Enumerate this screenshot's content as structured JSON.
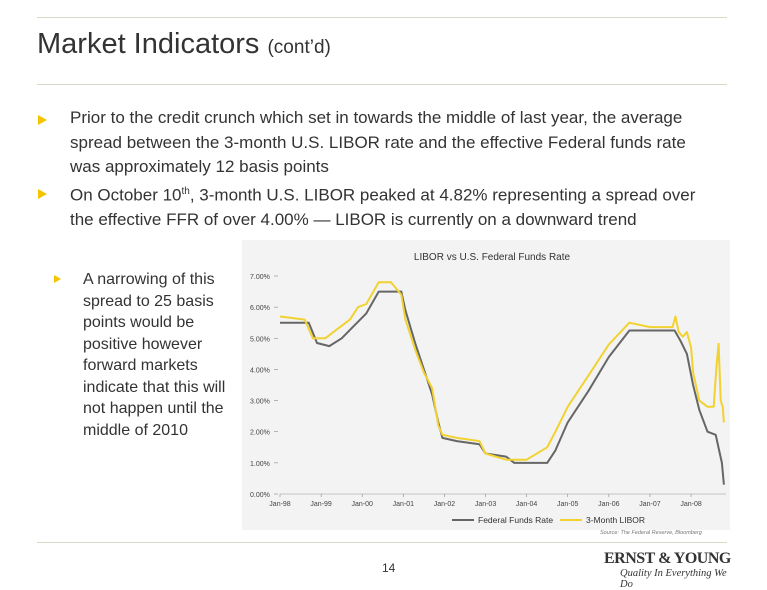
{
  "title": "Market Indicators",
  "title_suffix": "(cont’d)",
  "bullets": [
    "Prior to the credit crunch which set in towards the middle of last year, the average spread between the 3-month U.S. LIBOR rate and the effective Federal funds rate was approximately 12 basis points",
    {
      "pre": "On October 10",
      "sup": "th",
      "post": ", 3-month U.S. LIBOR peaked at 4.82% representing a spread over the effective FFR of over 4.00% — LIBOR is currently on a downward trend"
    }
  ],
  "sub_bullet": "A narrowing of this spread to 25 basis points would be positive however forward markets indicate that this will not happen until the middle of 2010",
  "page_number": "14",
  "logo": {
    "name": "ERNST & YOUNG",
    "tagline": "Quality In Everything We Do"
  },
  "chart_data": {
    "type": "line",
    "title": "LIBOR vs U.S. Federal Funds Rate",
    "y_ticks": [
      "7.00%",
      "6.00%",
      "5.00%",
      "4.00%",
      "3.00%",
      "2.00%",
      "1.00%",
      "0.00%"
    ],
    "x_ticks": [
      "Jan-98",
      "Jan-99",
      "Jan-00",
      "Jan-01",
      "Jan-02",
      "Jan-03",
      "Jan-04",
      "Jan-05",
      "Jan-06",
      "Jan-07",
      "Jan-08"
    ],
    "ylim": [
      0,
      7
    ],
    "xlim": [
      1998.0,
      2008.85
    ],
    "source": "Source: The Federal Reserve, Bloomberg",
    "series": [
      {
        "name": "Federal Funds Rate",
        "color": "#666666",
        "x": [
          1998.0,
          1998.7,
          1998.9,
          1999.2,
          1999.5,
          1999.8,
          2000.1,
          2000.4,
          2000.7,
          2000.95,
          2001.05,
          2001.3,
          2001.5,
          2001.7,
          2001.85,
          2001.95,
          2002.3,
          2002.85,
          2003.0,
          2003.5,
          2003.7,
          2004.0,
          2004.5,
          2004.7,
          2005.0,
          2005.5,
          2006.0,
          2006.5,
          2007.0,
          2007.6,
          2007.75,
          2007.9,
          2008.05,
          2008.2,
          2008.4,
          2008.6,
          2008.75,
          2008.8
        ],
        "y": [
          5.5,
          5.5,
          4.85,
          4.75,
          5.0,
          5.4,
          5.8,
          6.5,
          6.5,
          6.5,
          5.9,
          4.8,
          4.0,
          3.2,
          2.3,
          1.8,
          1.7,
          1.6,
          1.3,
          1.2,
          1.0,
          1.0,
          1.0,
          1.4,
          2.3,
          3.3,
          4.4,
          5.25,
          5.25,
          5.25,
          4.9,
          4.5,
          3.5,
          2.7,
          2.0,
          1.9,
          1.0,
          0.3
        ]
      },
      {
        "name": "3-Month LIBOR",
        "color": "#f2d230",
        "x": [
          1998.0,
          1998.6,
          1998.8,
          1999.1,
          1999.4,
          1999.7,
          1999.9,
          2000.1,
          2000.4,
          2000.7,
          2000.95,
          2001.05,
          2001.3,
          2001.5,
          2001.7,
          2001.85,
          2001.95,
          2002.3,
          2002.85,
          2003.0,
          2003.5,
          2003.7,
          2004.0,
          2004.5,
          2004.7,
          2005.0,
          2005.5,
          2006.0,
          2006.5,
          2007.0,
          2007.55,
          2007.62,
          2007.7,
          2007.8,
          2007.9,
          2008.0,
          2008.05,
          2008.2,
          2008.4,
          2008.55,
          2008.62,
          2008.67,
          2008.72,
          2008.77,
          2008.8
        ],
        "y": [
          5.7,
          5.6,
          5.0,
          5.0,
          5.3,
          5.6,
          6.0,
          6.1,
          6.8,
          6.8,
          6.4,
          5.6,
          4.6,
          3.9,
          3.4,
          2.2,
          1.9,
          1.8,
          1.7,
          1.3,
          1.1,
          1.1,
          1.1,
          1.5,
          2.0,
          2.8,
          3.8,
          4.8,
          5.5,
          5.36,
          5.36,
          5.7,
          5.2,
          5.05,
          5.2,
          4.7,
          3.9,
          3.0,
          2.8,
          2.8,
          4.1,
          4.82,
          3.0,
          2.8,
          2.3
        ]
      }
    ]
  }
}
